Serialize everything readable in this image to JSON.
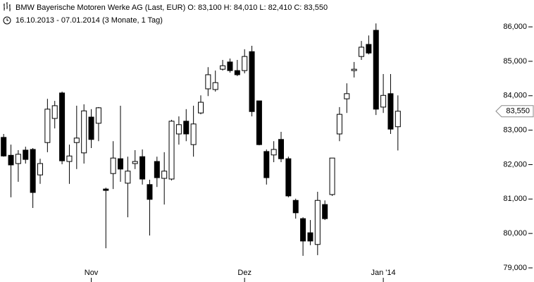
{
  "chart_data": {
    "type": "candlestick",
    "title": "BMW Bayerische Motoren Werke AG (Last, EUR)  O: 83,100  H: 84,010  L: 82,410  C: 83,550",
    "subtitle": "16.10.2013 - 07.01.2014 (3 Monate, 1 Tag)",
    "categories": [
      null,
      null,
      null,
      null,
      null,
      null,
      null,
      null,
      null,
      null,
      null,
      null,
      "Nov",
      null,
      null,
      null,
      null,
      null,
      null,
      null,
      null,
      null,
      null,
      null,
      null,
      null,
      null,
      null,
      null,
      null,
      null,
      null,
      null,
      "Dez",
      null,
      null,
      null,
      null,
      null,
      null,
      null,
      null,
      null,
      null,
      null,
      null,
      null,
      null,
      null,
      null,
      null,
      null,
      "Jan '14",
      null,
      null
    ],
    "open": [
      82790,
      82270,
      82030,
      82420,
      82440,
      81700,
      82640,
      83340,
      84080,
      82090,
      82640,
      82340,
      83380,
      83200,
      81290,
      81740,
      82170,
      81460,
      82030,
      82230,
      81420,
      82090,
      81600,
      81580,
      82890,
      83260,
      82580,
      83500,
      84200,
      84180,
      84770,
      84980,
      84730,
      84730,
      85280,
      83850,
      82380,
      82280,
      82730,
      82170,
      80960,
      80430,
      80020,
      79680,
      80840,
      81130,
      82890,
      83910,
      84730,
      85140,
      85490,
      85900,
      83670,
      84060,
      83100
    ],
    "high": [
      82890,
      82580,
      82420,
      82520,
      82480,
      82170,
      83910,
      83850,
      84120,
      82580,
      83710,
      83750,
      83610,
      83670,
      81330,
      82680,
      83710,
      82230,
      82420,
      82440,
      81560,
      82230,
      82360,
      83300,
      83400,
      83610,
      83710,
      84010,
      84830,
      84730,
      85040,
      85080,
      85040,
      85350,
      85450,
      83850,
      82440,
      82680,
      82950,
      82230,
      81010,
      80470,
      80390,
      81210,
      80960,
      82190,
      83670,
      84360,
      84980,
      85590,
      85750,
      86100,
      84630,
      84630,
      84010
    ],
    "low": [
      82230,
      81050,
      81500,
      82030,
      80740,
      81440,
      82360,
      83050,
      82010,
      81440,
      81870,
      82030,
      82480,
      82680,
      79570,
      81290,
      81500,
      80470,
      81870,
      81420,
      79940,
      81350,
      80840,
      81540,
      82580,
      82680,
      82230,
      83460,
      83990,
      84120,
      84730,
      84670,
      84570,
      84650,
      83400,
      82560,
      81420,
      82070,
      82070,
      81050,
      80430,
      79350,
      79660,
      79370,
      80390,
      81090,
      82680,
      83500,
      84530,
      85040,
      85200,
      83440,
      83500,
      82890,
      82410
    ],
    "close": [
      82250,
      81990,
      82300,
      82150,
      81190,
      82030,
      83610,
      83710,
      82110,
      82250,
      82770,
      83560,
      82730,
      83650,
      81250,
      82190,
      81870,
      81810,
      82090,
      81580,
      80990,
      81620,
      81810,
      83260,
      83160,
      82890,
      83180,
      83810,
      84610,
      84380,
      84870,
      84730,
      84610,
      85140,
      83540,
      82580,
      81620,
      82440,
      82170,
      81090,
      80600,
      79780,
      79780,
      80960,
      80430,
      82190,
      83460,
      84060,
      84770,
      85410,
      85240,
      83610,
      84010,
      83030,
      83550
    ],
    "up_color": "#ffffff",
    "down_color": "#000000",
    "wick_color": "#000000",
    "ylim": [
      78590,
      86780
    ],
    "yticks": [
      {
        "value": 79000,
        "label": "79,000"
      },
      {
        "value": 80000,
        "label": "80,000"
      },
      {
        "value": 81000,
        "label": "81,000"
      },
      {
        "value": 82000,
        "label": "82,000"
      },
      {
        "value": 83000,
        "label": "83,000"
      },
      {
        "value": 84000,
        "label": "84,000"
      },
      {
        "value": 85000,
        "label": "85,000"
      },
      {
        "value": 86000,
        "label": "86,000"
      }
    ],
    "last_price": {
      "value": 83550,
      "label": "83,550"
    }
  }
}
